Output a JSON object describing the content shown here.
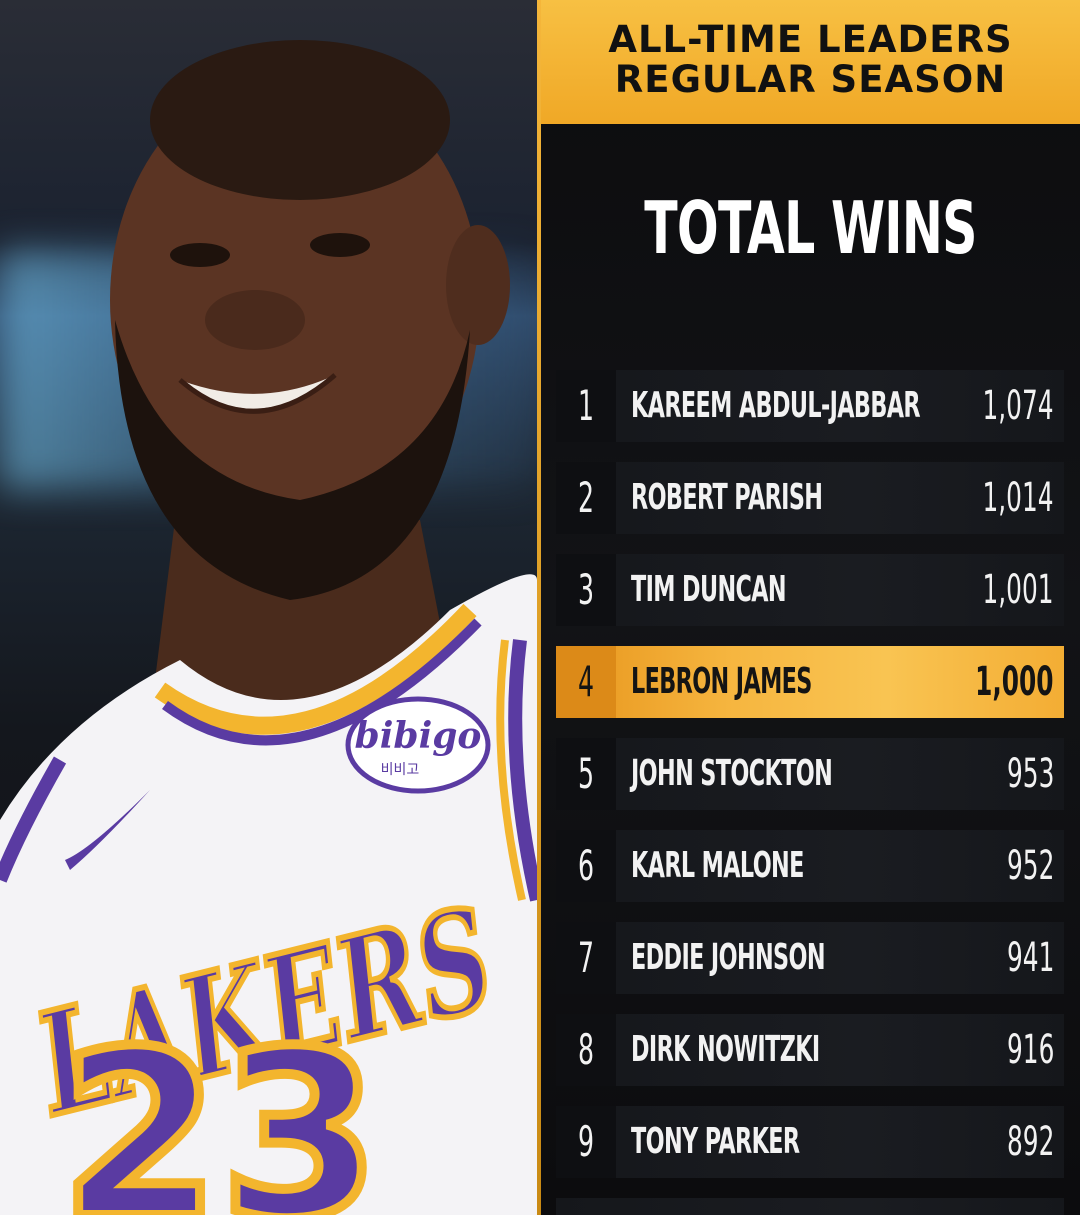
{
  "header": {
    "line1": "ALL-TIME LEADERS",
    "line2": "REGULAR SEASON"
  },
  "title": "TOTAL WINS",
  "colors": {
    "accent": "#f5b63a",
    "background": "#0c0c0e",
    "text": "#f2f2f2"
  },
  "leaders": [
    {
      "rank": "1",
      "name": "KAREEM ABDUL-JABBAR",
      "wins": "1,074"
    },
    {
      "rank": "2",
      "name": "ROBERT PARISH",
      "wins": "1,014"
    },
    {
      "rank": "3",
      "name": "TIM DUNCAN",
      "wins": "1,001"
    },
    {
      "rank": "4",
      "name": "LEBRON JAMES",
      "wins": "1,000",
      "highlight": true
    },
    {
      "rank": "5",
      "name": "JOHN STOCKTON",
      "wins": "953"
    },
    {
      "rank": "6",
      "name": "KARL MALONE",
      "wins": "952"
    },
    {
      "rank": "7",
      "name": "EDDIE JOHNSON",
      "wins": "941"
    },
    {
      "rank": "8",
      "name": "DIRK NOWITZKI",
      "wins": "916"
    },
    {
      "rank": "9",
      "name": "TONY PARKER",
      "wins": "892"
    }
  ],
  "photo": {
    "jersey_team": "LAKERS",
    "jersey_number": "23",
    "sponsor_patch": "bibigo",
    "sponsor_patch_sub": "비비고",
    "logo_icon": "swoosh-icon"
  }
}
